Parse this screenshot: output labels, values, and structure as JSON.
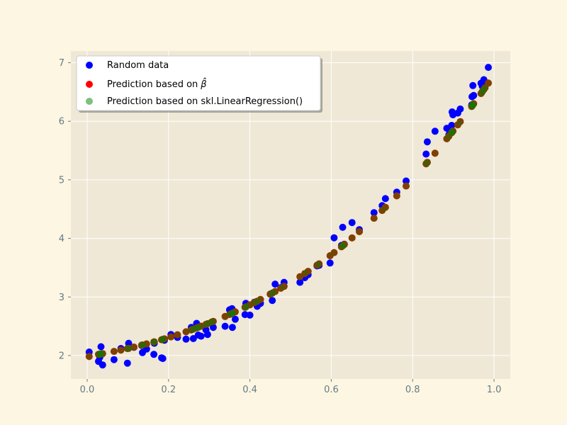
{
  "chart_data": {
    "type": "scatter",
    "title": "",
    "xlabel": "",
    "ylabel": "",
    "xlim": [
      -0.04,
      1.04
    ],
    "ylim": [
      1.6,
      7.2
    ],
    "xticks": [
      0.0,
      0.2,
      0.4,
      0.6,
      0.8,
      1.0
    ],
    "xtick_labels": [
      "0.0",
      "0.2",
      "0.4",
      "0.6",
      "0.8",
      "1.0"
    ],
    "yticks": [
      2,
      3,
      4,
      5,
      6,
      7
    ],
    "ytick_labels": [
      "2",
      "3",
      "4",
      "5",
      "6",
      "7"
    ],
    "grid": true,
    "legend_position": "top-left",
    "colors": {
      "background": "#fdf6e3",
      "plot_background": "#efe8d6",
      "grid": "#ffffff",
      "tick": "#657b83"
    },
    "x": [
      0.005,
      0.028,
      0.031,
      0.034,
      0.038,
      0.066,
      0.083,
      0.099,
      0.102,
      0.115,
      0.134,
      0.136,
      0.146,
      0.164,
      0.165,
      0.183,
      0.186,
      0.19,
      0.206,
      0.222,
      0.243,
      0.256,
      0.261,
      0.269,
      0.273,
      0.28,
      0.292,
      0.296,
      0.306,
      0.31,
      0.339,
      0.35,
      0.356,
      0.357,
      0.364,
      0.388,
      0.39,
      0.4,
      0.411,
      0.418,
      0.426,
      0.45,
      0.455,
      0.462,
      0.476,
      0.484,
      0.523,
      0.535,
      0.543,
      0.565,
      0.57,
      0.597,
      0.607,
      0.625,
      0.628,
      0.632,
      0.651,
      0.669,
      0.705,
      0.725,
      0.733,
      0.761,
      0.784,
      0.833,
      0.836,
      0.855,
      0.884,
      0.889,
      0.896,
      0.897,
      0.899,
      0.911,
      0.917,
      0.945,
      0.946,
      0.948,
      0.95,
      0.968,
      0.971,
      0.975,
      0.978,
      0.986
    ],
    "series": [
      {
        "name": "Random data",
        "color": "#0000ff",
        "opacity": 1,
        "y": [
          2.06,
          1.9,
          1.97,
          2.15,
          1.84,
          1.93,
          2.12,
          1.87,
          2.21,
          2.14,
          2.17,
          2.05,
          2.11,
          2.02,
          2.21,
          1.96,
          1.95,
          2.26,
          2.36,
          2.31,
          2.28,
          2.48,
          2.29,
          2.55,
          2.35,
          2.33,
          2.44,
          2.36,
          2.56,
          2.48,
          2.5,
          2.78,
          2.8,
          2.48,
          2.62,
          2.7,
          2.89,
          2.69,
          2.91,
          2.84,
          2.89,
          3.05,
          2.94,
          3.22,
          3.16,
          3.25,
          3.25,
          3.33,
          3.38,
          3.53,
          3.54,
          3.58,
          4.01,
          3.88,
          4.19,
          3.9,
          4.27,
          4.15,
          4.44,
          4.56,
          4.68,
          4.79,
          4.98,
          5.44,
          5.65,
          5.83,
          5.88,
          5.77,
          5.93,
          6.16,
          6.11,
          6.14,
          6.21,
          6.28,
          6.42,
          6.61,
          6.44,
          6.65,
          6.6,
          6.71,
          6.66,
          6.92
        ]
      },
      {
        "name": "Prediction based on",
        "legend_suffix": "β̂",
        "color": "#ff0000",
        "opacity": 1,
        "y": [
          1.985,
          2.02,
          2.024,
          2.028,
          2.033,
          2.07,
          2.094,
          2.119,
          2.123,
          2.144,
          2.177,
          2.181,
          2.199,
          2.232,
          2.234,
          2.27,
          2.276,
          2.284,
          2.319,
          2.355,
          2.405,
          2.438,
          2.451,
          2.472,
          2.482,
          2.501,
          2.533,
          2.544,
          2.572,
          2.583,
          2.667,
          2.701,
          2.72,
          2.723,
          2.745,
          2.824,
          2.831,
          2.865,
          2.903,
          2.928,
          2.957,
          3.047,
          3.066,
          3.094,
          3.149,
          3.181,
          3.346,
          3.4,
          3.437,
          3.542,
          3.566,
          3.704,
          3.758,
          3.857,
          3.874,
          3.897,
          4.008,
          4.116,
          4.344,
          4.477,
          4.531,
          4.727,
          4.895,
          5.275,
          5.299,
          5.455,
          5.701,
          5.745,
          5.806,
          5.815,
          5.833,
          5.94,
          5.994,
          6.253,
          6.262,
          6.281,
          6.3,
          6.474,
          6.503,
          6.543,
          6.572,
          6.652
        ]
      },
      {
        "name": "Prediction based on skl.LinearRegression()",
        "color": "#008000",
        "opacity": 0.5,
        "y": [
          1.985,
          2.02,
          2.024,
          2.028,
          2.033,
          2.07,
          2.094,
          2.119,
          2.123,
          2.144,
          2.177,
          2.181,
          2.199,
          2.232,
          2.234,
          2.27,
          2.276,
          2.284,
          2.319,
          2.355,
          2.405,
          2.438,
          2.451,
          2.472,
          2.482,
          2.501,
          2.533,
          2.544,
          2.572,
          2.583,
          2.667,
          2.701,
          2.72,
          2.723,
          2.745,
          2.824,
          2.831,
          2.865,
          2.903,
          2.928,
          2.957,
          3.047,
          3.066,
          3.094,
          3.149,
          3.181,
          3.346,
          3.4,
          3.437,
          3.542,
          3.566,
          3.704,
          3.758,
          3.857,
          3.874,
          3.897,
          4.008,
          4.116,
          4.344,
          4.477,
          4.531,
          4.727,
          4.895,
          5.275,
          5.299,
          5.455,
          5.701,
          5.745,
          5.806,
          5.815,
          5.833,
          5.94,
          5.994,
          6.253,
          6.262,
          6.281,
          6.3,
          6.474,
          6.503,
          6.543,
          6.572,
          6.652
        ]
      }
    ]
  }
}
